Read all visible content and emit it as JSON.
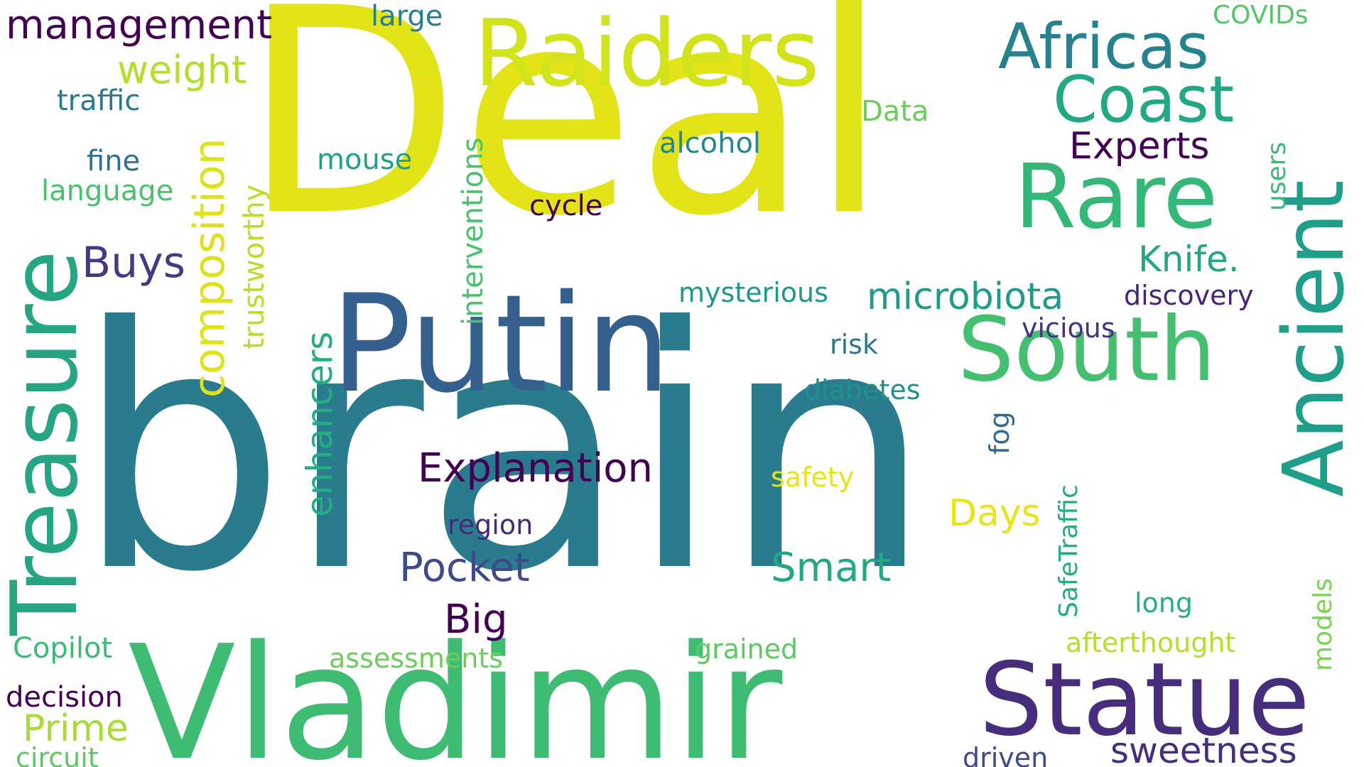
{
  "word_cloud": {
    "palette": "viridis",
    "background": "#ffffff",
    "words": [
      {
        "key": "w_brain",
        "text": "brain",
        "color": "#2a7b8e",
        "orientation": "horizontal"
      },
      {
        "key": "w_deal",
        "text": "Deal",
        "color": "#e2e418",
        "orientation": "horizontal"
      },
      {
        "key": "w_vladimir",
        "text": "Vladimir",
        "color": "#3fbc73",
        "orientation": "horizontal"
      },
      {
        "key": "w_putin",
        "text": "Putin",
        "color": "#355f8d",
        "orientation": "horizontal"
      },
      {
        "key": "w_treasure",
        "text": "Treasure",
        "color": "#25a584",
        "orientation": "vertical"
      },
      {
        "key": "w_statue",
        "text": "Statue",
        "color": "#472d7b",
        "orientation": "horizontal"
      },
      {
        "key": "w_raiders",
        "text": "Raiders",
        "color": "#d2e21b",
        "orientation": "horizontal"
      },
      {
        "key": "w_ancient",
        "text": "Ancient",
        "color": "#1f9e89",
        "orientation": "vertical"
      },
      {
        "key": "w_south",
        "text": "South",
        "color": "#44bf70",
        "orientation": "horizontal"
      },
      {
        "key": "w_rare",
        "text": "Rare",
        "color": "#35b779",
        "orientation": "horizontal"
      },
      {
        "key": "w_coast",
        "text": "Coast",
        "color": "#22a884",
        "orientation": "horizontal"
      },
      {
        "key": "w_africas",
        "text": "Africas",
        "color": "#26828e",
        "orientation": "horizontal"
      },
      {
        "key": "w_management",
        "text": "management",
        "color": "#440154",
        "orientation": "horizontal"
      },
      {
        "key": "w_weight",
        "text": "weight",
        "color": "#b5de2b",
        "orientation": "horizontal"
      },
      {
        "key": "w_traffic",
        "text": "traffic",
        "color": "#2a788e",
        "orientation": "horizontal"
      },
      {
        "key": "w_fine",
        "text": "fine",
        "color": "#2c728e",
        "orientation": "horizontal"
      },
      {
        "key": "w_language",
        "text": "language",
        "color": "#4ac16d",
        "orientation": "horizontal"
      },
      {
        "key": "w_composition",
        "text": "composition",
        "color": "#dde318",
        "orientation": "vertical"
      },
      {
        "key": "w_trustworthy",
        "text": "trustworthy",
        "color": "#b8de29",
        "orientation": "vertical"
      },
      {
        "key": "w_buys",
        "text": "Buys",
        "color": "#443983",
        "orientation": "horizontal"
      },
      {
        "key": "w_mouse",
        "text": "mouse",
        "color": "#1fa088",
        "orientation": "horizontal"
      },
      {
        "key": "w_interventions",
        "text": "interventions",
        "color": "#4ac16d",
        "orientation": "vertical"
      },
      {
        "key": "w_large",
        "text": "large",
        "color": "#277f8e",
        "orientation": "horizontal"
      },
      {
        "key": "w_covids",
        "text": "COVIDs",
        "color": "#54c568",
        "orientation": "horizontal"
      },
      {
        "key": "w_data",
        "text": "Data",
        "color": "#6ccd5a",
        "orientation": "horizontal"
      },
      {
        "key": "w_alcohol",
        "text": "alcohol",
        "color": "#24878e",
        "orientation": "horizontal"
      },
      {
        "key": "w_experts",
        "text": "Experts",
        "color": "#440154",
        "orientation": "horizontal"
      },
      {
        "key": "w_users",
        "text": "users",
        "color": "#3aba76",
        "orientation": "vertical"
      },
      {
        "key": "w_cycle",
        "text": "cycle",
        "color": "#440154",
        "orientation": "horizontal"
      },
      {
        "key": "w_knife",
        "text": "Knife.",
        "color": "#22a785",
        "orientation": "horizontal"
      },
      {
        "key": "w_mysterious",
        "text": "mysterious",
        "color": "#1f988b",
        "orientation": "horizontal"
      },
      {
        "key": "w_microbiota",
        "text": "microbiota",
        "color": "#1e9c89",
        "orientation": "horizontal"
      },
      {
        "key": "w_discovery",
        "text": "discovery",
        "color": "#482576",
        "orientation": "horizontal"
      },
      {
        "key": "w_vicious",
        "text": "vicious",
        "color": "#46337f",
        "orientation": "horizontal"
      },
      {
        "key": "w_risk",
        "text": "risk",
        "color": "#2a768e",
        "orientation": "horizontal"
      },
      {
        "key": "w_enhancers",
        "text": "enhancers",
        "color": "#25ac82",
        "orientation": "vertical"
      },
      {
        "key": "w_diabetes",
        "text": "diabetes",
        "color": "#21918c",
        "orientation": "horizontal"
      },
      {
        "key": "w_fog",
        "text": "fog",
        "color": "#31688e",
        "orientation": "vertical"
      },
      {
        "key": "w_explanation",
        "text": "Explanation",
        "color": "#440154",
        "orientation": "horizontal"
      },
      {
        "key": "w_safety",
        "text": "safety",
        "color": "#e5e419",
        "orientation": "horizontal"
      },
      {
        "key": "w_safetraffic",
        "text": "SafeTraffic",
        "color": "#25ab82",
        "orientation": "vertical"
      },
      {
        "key": "w_days",
        "text": "Days",
        "color": "#e7e419",
        "orientation": "horizontal"
      },
      {
        "key": "w_region",
        "text": "region",
        "color": "#482878",
        "orientation": "horizontal"
      },
      {
        "key": "w_pocket",
        "text": "Pocket",
        "color": "#3e4a89",
        "orientation": "horizontal"
      },
      {
        "key": "w_smart",
        "text": "Smart",
        "color": "#22a884",
        "orientation": "horizontal"
      },
      {
        "key": "w_big",
        "text": "Big",
        "color": "#440154",
        "orientation": "horizontal"
      },
      {
        "key": "w_long",
        "text": "long",
        "color": "#29af7f",
        "orientation": "horizontal"
      },
      {
        "key": "w_models",
        "text": "models",
        "color": "#7ad151",
        "orientation": "vertical"
      },
      {
        "key": "w_afterthought",
        "text": "afterthought",
        "color": "#b5de2b",
        "orientation": "horizontal"
      },
      {
        "key": "w_grained",
        "text": "grained",
        "color": "#5ec962",
        "orientation": "horizontal"
      },
      {
        "key": "w_copilot",
        "text": "Copilot",
        "color": "#3bbb75",
        "orientation": "horizontal"
      },
      {
        "key": "w_assessments",
        "text": "assessments",
        "color": "#6ccd5a",
        "orientation": "horizontal"
      },
      {
        "key": "w_decision",
        "text": "decision",
        "color": "#440154",
        "orientation": "horizontal"
      },
      {
        "key": "w_prime",
        "text": "Prime",
        "color": "#a8db34",
        "orientation": "horizontal"
      },
      {
        "key": "w_circuit",
        "text": "circuit",
        "color": "#5ec962",
        "orientation": "horizontal"
      },
      {
        "key": "w_driven",
        "text": "driven",
        "color": "#3e4a89",
        "orientation": "horizontal"
      },
      {
        "key": "w_sweetness",
        "text": "sweetness",
        "color": "#472d7b",
        "orientation": "horizontal"
      }
    ]
  }
}
